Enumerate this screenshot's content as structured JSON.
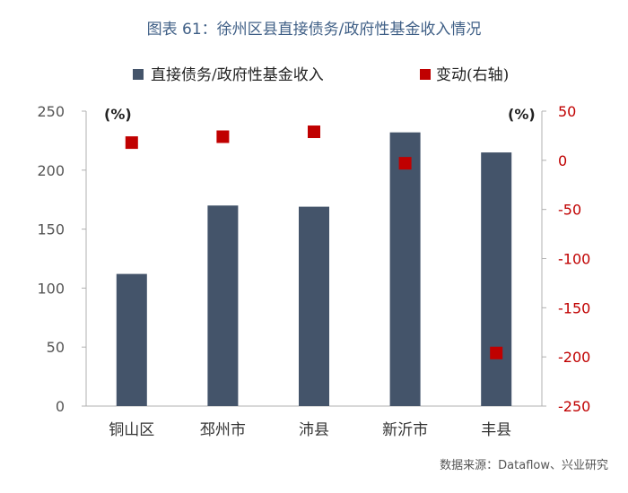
{
  "title": "图表 61：徐州区县直接债务/政府性基金收入情况",
  "source": "数据来源：Dataflow、兴业研究",
  "chart_data": {
    "type": "bar",
    "categories": [
      "铜山区",
      "邳州市",
      "沛县",
      "新沂市",
      "丰县"
    ],
    "series": [
      {
        "name": "直接债务/政府性基金收入",
        "type": "bar",
        "axis": "left",
        "values": [
          112,
          170,
          169,
          232,
          215
        ],
        "color": "#44546a"
      },
      {
        "name": "变动(右轴)",
        "type": "scatter",
        "axis": "right",
        "values": [
          18,
          24,
          29,
          -3,
          -196
        ],
        "color": "#c00000"
      }
    ],
    "left_axis": {
      "unit": "(%)",
      "ylim": [
        0,
        250
      ],
      "ticks": [
        "0",
        "50",
        "100",
        "150",
        "200",
        "250"
      ],
      "color": "#555555"
    },
    "right_axis": {
      "unit": "(%)",
      "ylim": [
        -250,
        50
      ],
      "ticks": [
        "50",
        "0",
        "-50",
        "-100",
        "-150",
        "-200",
        "-250"
      ],
      "color": "#c00000"
    },
    "legend": "top",
    "grid": false
  }
}
